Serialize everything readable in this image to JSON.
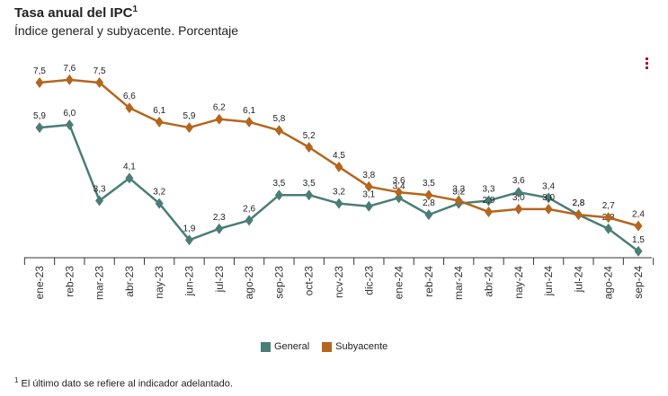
{
  "title": "Tasa anual del IPC",
  "title_sup": "1",
  "subtitle": "Índice general y subyacente. Porcentaje",
  "menu_icon": "kebab-menu-icon",
  "footnote_mark": "1",
  "footnote": "El último dato se refiere al indicador adelantado.",
  "colors": {
    "general": "#4a7d76",
    "subyacente": "#b5651d"
  },
  "chart_data": {
    "type": "line",
    "categories": [
      "ene-23",
      "feb-23",
      "mar-23",
      "abr-23",
      "may-23",
      "jun-23",
      "jul-23",
      "ago-23",
      "sep-23",
      "oct-23",
      "nov-23",
      "dic-23",
      "ene-24",
      "feb-24",
      "mar-24",
      "abr-24",
      "may-24",
      "jun-24",
      "jul-24",
      "ago-24",
      "sep-24"
    ],
    "tick_labels": [
      "ene-23",
      "reb-23",
      "mar-23",
      "abr-23",
      "nay-23",
      "jun-23",
      "jul-23",
      "ago-23",
      "sep-23",
      "oct-23",
      "ncv-23",
      "dic-23",
      "ene-24",
      "reb-24",
      "mar-24",
      "abr-24",
      "nay-24",
      "jun-24",
      "jul-24",
      "ago-24",
      "sep-24"
    ],
    "series": [
      {
        "name": "General",
        "values": [
          5.9,
          6.0,
          3.3,
          4.1,
          3.2,
          1.9,
          2.3,
          2.6,
          3.5,
          3.5,
          3.2,
          3.1,
          3.4,
          2.8,
          3.2,
          3.3,
          3.6,
          3.4,
          2.8,
          2.3,
          1.5
        ],
        "labels": [
          "5,9",
          "6,0",
          "3,3",
          "4,1",
          "3,2",
          "1,9",
          "2,3",
          "2,6",
          "3,5",
          "3,5",
          "3,2",
          "3,1",
          "3,4",
          "2,8",
          "3,2",
          "3,3",
          "3,6",
          "3,4",
          "2,8",
          "2,3",
          "1,5"
        ]
      },
      {
        "name": "Subyacente",
        "values": [
          7.5,
          7.6,
          7.5,
          6.6,
          6.1,
          5.9,
          6.2,
          6.1,
          5.8,
          5.2,
          4.5,
          3.8,
          3.6,
          3.5,
          3.3,
          2.9,
          3.0,
          3.0,
          2.8,
          2.7,
          2.4
        ],
        "labels": [
          "7,5",
          "7,6",
          "7,5",
          "6,6",
          "6,1",
          "5,9",
          "6,2",
          "6,1",
          "5,8",
          "5,2",
          "4,5",
          "3,8",
          "3,6",
          "3,5",
          "3,3",
          "2,9",
          "3,0",
          "3,0",
          "2,8",
          "2,7",
          "2,4"
        ]
      }
    ],
    "ylim": [
      1.0,
      8.0
    ],
    "grid": false,
    "legend": "bottom"
  }
}
